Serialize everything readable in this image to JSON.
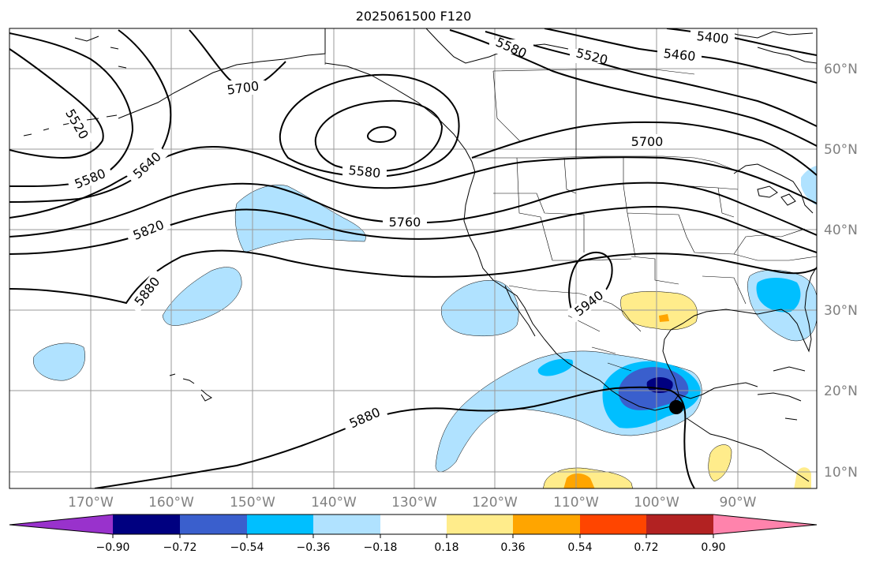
{
  "title": "2025061500 F120",
  "lat_labels": [
    "60°N",
    "50°N",
    "40°N",
    "30°N",
    "20°N",
    "10°N"
  ],
  "lon_labels": [
    "170°W",
    "160°W",
    "150°W",
    "140°W",
    "130°W",
    "120°W",
    "110°W",
    "100°W",
    "90°W"
  ],
  "contour_labels": [
    "5400",
    "5460",
    "5520",
    "5580",
    "5700",
    "5520",
    "5580",
    "5640",
    "5700",
    "5580",
    "5760",
    "5820",
    "5880",
    "5940",
    "5880"
  ],
  "colorbar": {
    "tick_labels": [
      "−0.90",
      "−0.72",
      "−0.54",
      "−0.36",
      "−0.18",
      "0.18",
      "0.36",
      "0.54",
      "0.72",
      "0.90"
    ],
    "colors": [
      "#9932cc",
      "#000080",
      "#3a5fcd",
      "#00bfff",
      "#b0e2ff",
      "#ffffff",
      "#ffec8b",
      "#ffa500",
      "#ff4500",
      "#b22222",
      "#ff83ac"
    ]
  },
  "fill_colors": {
    "light_blue": "#b0e2ff",
    "blue": "#00bfff",
    "royal_blue": "#3a5fcd",
    "navy": "#000080",
    "yellow": "#ffec8b",
    "orange": "#ffa500"
  }
}
